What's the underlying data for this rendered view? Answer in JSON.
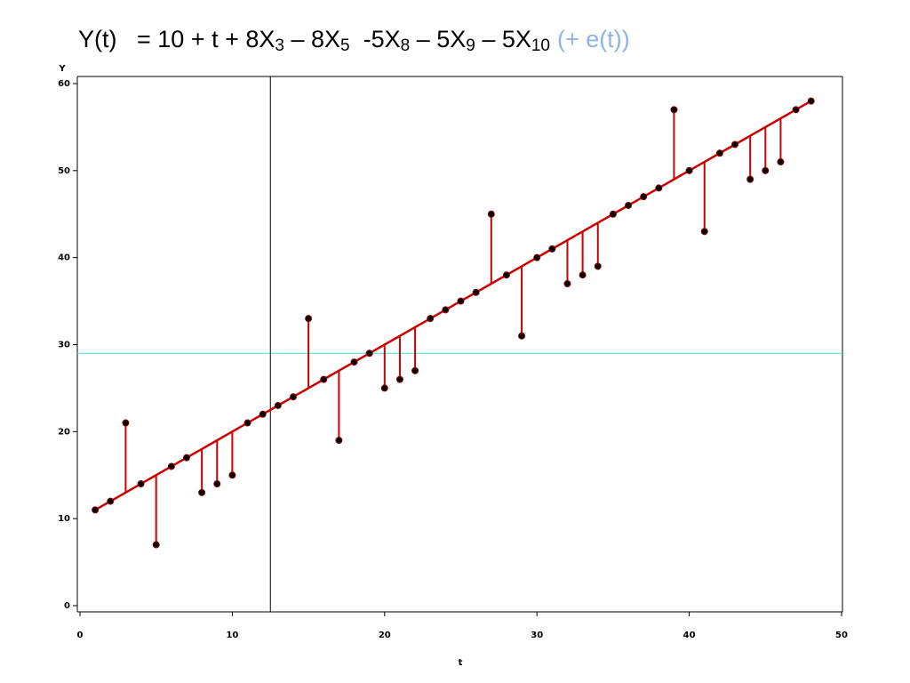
{
  "chart_data": {
    "type": "scatter",
    "title": [
      [
        "Y(t)   = 10 + t + 8X",
        "3"
      ],
      [
        " – 8X",
        "5"
      ],
      [
        "  -5X",
        "8"
      ],
      [
        " – 5X",
        "9"
      ],
      [
        " – 5X",
        "10"
      ]
    ],
    "title_note": "(+ e(t))",
    "x_label": "t",
    "y_label": "Y",
    "x": [
      1,
      2,
      3,
      4,
      5,
      6,
      7,
      8,
      9,
      10,
      11,
      12,
      13,
      14,
      15,
      16,
      17,
      18,
      19,
      20,
      21,
      22,
      23,
      24,
      25,
      26,
      27,
      28,
      29,
      30,
      31,
      32,
      33,
      34,
      35,
      36,
      37,
      38,
      39,
      40,
      41,
      42,
      43,
      44,
      45,
      46,
      47,
      48
    ],
    "series": [
      {
        "color": "#000000",
        "values": [
          11,
          12,
          21,
          14,
          7,
          16,
          17,
          13,
          14,
          15,
          21,
          22,
          23,
          24,
          33,
          26,
          19,
          28,
          29,
          25,
          26,
          27,
          33,
          34,
          35,
          36,
          45,
          38,
          31,
          40,
          41,
          37,
          38,
          39,
          45,
          46,
          47,
          48,
          57,
          50,
          43,
          52,
          53,
          49,
          50,
          51,
          57,
          58
        ]
      },
      {
        "color": "#cc0000",
        "values": [
          11,
          12,
          13,
          14,
          15,
          16,
          17,
          18,
          19,
          20,
          21,
          22,
          23,
          24,
          25,
          26,
          27,
          28,
          29,
          30,
          31,
          32,
          33,
          34,
          35,
          36,
          37,
          38,
          39,
          40,
          41,
          42,
          43,
          44,
          45,
          46,
          47,
          48,
          49,
          50,
          51,
          52,
          53,
          54,
          55,
          56,
          57,
          58
        ]
      }
    ],
    "hline": {
      "value": 29,
      "color": "#40e0d0"
    },
    "vline": {
      "value": 12.5,
      "color": "#000000"
    },
    "xlim": [
      0,
      50
    ],
    "ylim": [
      0,
      60
    ],
    "xticks": [
      0,
      10,
      20,
      30,
      40,
      50
    ],
    "yticks": [
      0,
      10,
      20,
      30,
      40,
      50,
      60
    ]
  }
}
